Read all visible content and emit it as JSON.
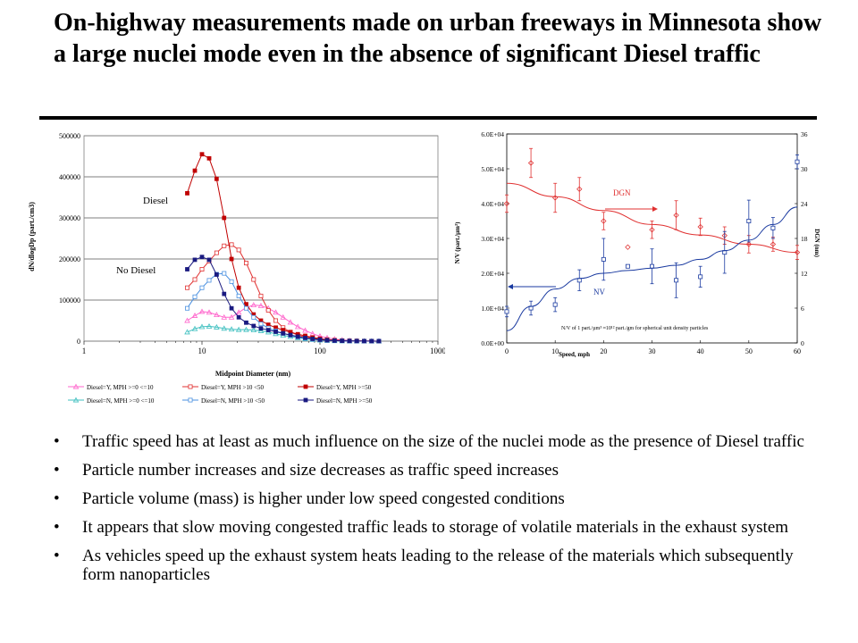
{
  "slide": {
    "title": "On-highway measurements made on urban freeways in Minnesota show a large nuclei mode even in the absence of significant Diesel traffic",
    "bullets": [
      "Traffic speed has at least as much influence on the size of the nuclei mode as the presence of Diesel traffic",
      "Particle number increases and size decreases as traffic speed increases",
      "Particle volume (mass) is higher under low speed congested conditions",
      "It appears that slow moving congested traffic leads to storage of volatile materials in the exhaust system",
      "As vehicles speed up the exhaust system heats leading to the release of the materials which subsequently form nanoparticles"
    ],
    "bullet_glyph": "•"
  },
  "chart_data": [
    {
      "type": "line",
      "xlabel": "Midpoint Diameter (nm)",
      "ylabel": "dN/dlogDp (part./cm3)",
      "xscale": "log",
      "xlim": [
        1,
        1000
      ],
      "ylim": [
        0,
        500000
      ],
      "x_ticks": [
        1,
        10,
        100,
        1000
      ],
      "x_tick_labels": [
        "1",
        "10",
        "100",
        "1000"
      ],
      "y_ticks": [
        0,
        100000,
        200000,
        300000,
        400000,
        500000
      ],
      "y_tick_labels": [
        "0",
        "100000",
        "200000",
        "300000",
        "400000",
        "500000"
      ],
      "grid": "horizontal",
      "legend_position": "bottom",
      "annotations": [
        "Diesel",
        "No Diesel"
      ],
      "x": [
        7.5,
        8.7,
        10,
        11.5,
        13.3,
        15.4,
        17.8,
        20.5,
        23.7,
        27.4,
        31.6,
        36.5,
        42.2,
        48.7,
        56.2,
        64.9,
        75,
        86.6,
        100,
        115,
        133,
        154,
        178,
        205,
        237,
        274,
        316
      ],
      "series": [
        {
          "name": "Diesel=Y, MPH >=0 <=10",
          "color": "#ff66cc",
          "marker": "triangle",
          "values": [
            50000,
            62000,
            72000,
            70000,
            64000,
            58000,
            58000,
            70000,
            82000,
            88000,
            86000,
            80000,
            70000,
            58000,
            46000,
            35000,
            26000,
            18000,
            12000,
            8000,
            5000,
            3000,
            1800,
            1000,
            500,
            250,
            100
          ]
        },
        {
          "name": "Diesel=Y, MPH >10 <50",
          "color": "#e03030",
          "marker": "square-open",
          "values": [
            130000,
            150000,
            175000,
            195000,
            215000,
            232000,
            235000,
            222000,
            190000,
            150000,
            110000,
            75000,
            50000,
            33000,
            22000,
            15000,
            10000,
            7000,
            4500,
            3000,
            2000,
            1200,
            700,
            400,
            200,
            100,
            50
          ]
        },
        {
          "name": "Diesel=Y, MPH >=50",
          "color": "#c00000",
          "marker": "square",
          "values": [
            360000,
            415000,
            455000,
            445000,
            395000,
            300000,
            200000,
            130000,
            90000,
            65000,
            50000,
            40000,
            33000,
            27000,
            22000,
            17000,
            13000,
            9000,
            6000,
            4000,
            2500,
            1500,
            900,
            500,
            250,
            120,
            60
          ]
        },
        {
          "name": "Diesel=N, MPH >=0 <=10",
          "color": "#40c0c0",
          "marker": "triangle",
          "values": [
            22000,
            30000,
            35000,
            36000,
            34000,
            31000,
            29000,
            28000,
            28000,
            27000,
            25000,
            22000,
            18000,
            14000,
            11000,
            8000,
            5500,
            3800,
            2500,
            1500,
            900,
            500,
            250,
            120,
            60,
            30,
            10
          ]
        },
        {
          "name": "Diesel=N, MPH >10 <50",
          "color": "#4a90e0",
          "marker": "square-open",
          "values": [
            80000,
            108000,
            130000,
            148000,
            163000,
            165000,
            145000,
            110000,
            80000,
            58000,
            42000,
            32000,
            25000,
            19000,
            14000,
            10000,
            7000,
            4500,
            3000,
            1800,
            1000,
            600,
            300,
            150,
            80,
            40,
            20
          ]
        },
        {
          "name": "Diesel=N, MPH >=50",
          "color": "#1a1a80",
          "marker": "square",
          "values": [
            175000,
            198000,
            205000,
            198000,
            162000,
            115000,
            80000,
            58000,
            45000,
            37000,
            31000,
            27000,
            23000,
            19000,
            15000,
            11000,
            8000,
            5500,
            3500,
            2200,
            1300,
            800,
            450,
            250,
            120,
            60,
            30
          ]
        }
      ]
    },
    {
      "type": "scatter",
      "xlabel": "Speed, mph",
      "ylabel": "N/V (part./µm³)",
      "y2label": "DGN (nm)",
      "xlim": [
        0,
        60
      ],
      "ylim": [
        0,
        60000
      ],
      "y2lim": [
        0,
        36
      ],
      "x_ticks": [
        0,
        10,
        20,
        30,
        40,
        50,
        60
      ],
      "x_tick_labels": [
        "0",
        "10",
        "20",
        "30",
        "40",
        "50",
        "60"
      ],
      "y_ticks": [
        0,
        10000,
        20000,
        30000,
        40000,
        50000,
        60000
      ],
      "y_tick_labels": [
        "0.0E+00",
        "1.0E+04",
        "2.0E+04",
        "3.0E+04",
        "4.0E+04",
        "5.0E+04",
        "6.0E+04"
      ],
      "y2_ticks": [
        0,
        6,
        12,
        18,
        24,
        30,
        36
      ],
      "y2_tick_labels": [
        "0",
        "6",
        "12",
        "18",
        "24",
        "30",
        "36"
      ],
      "grid": "off",
      "annotations": [
        "DGN",
        "NV",
        "N/V of 1 part./µm³ ≈10¹² part./gm for spherical unit density particles"
      ],
      "series": [
        {
          "name": "DGN",
          "axis": "right",
          "color": "#e03030",
          "marker": "diamond",
          "x": [
            0,
            5,
            10,
            15,
            20,
            25,
            30,
            35,
            40,
            45,
            50,
            55,
            60
          ],
          "y": [
            24,
            31,
            25,
            26.5,
            21,
            16.5,
            19.5,
            22,
            20,
            18.5,
            17,
            17,
            15.6
          ],
          "err": [
            1.5,
            2.5,
            2.5,
            2,
            1.5,
            0,
            1.5,
            2.5,
            1.5,
            1.5,
            1.5,
            1.2,
            1.2
          ]
        },
        {
          "name": "NV",
          "axis": "left",
          "color": "#1a3aa0",
          "marker": "square-open",
          "x": [
            0,
            5,
            10,
            15,
            20,
            25,
            30,
            35,
            40,
            45,
            50,
            55,
            60
          ],
          "y": [
            9000,
            10000,
            11000,
            18000,
            24000,
            22000,
            22000,
            18000,
            19000,
            26000,
            35000,
            33000,
            52000
          ],
          "err": [
            1500,
            2000,
            2000,
            3000,
            6000,
            0,
            5000,
            5000,
            3000,
            6000,
            6000,
            3000,
            2000
          ]
        },
        {
          "name": "DGN trend",
          "axis": "right",
          "color": "#e03030",
          "marker": "none",
          "x": [
            0,
            10,
            20,
            30,
            40,
            50,
            60
          ],
          "y": [
            27.5,
            25.2,
            22.8,
            20.4,
            18.6,
            17.0,
            15.6
          ]
        },
        {
          "name": "NV trend",
          "axis": "left",
          "color": "#1a3aa0",
          "marker": "none",
          "x": [
            0,
            5,
            10,
            15,
            20,
            25,
            30,
            35,
            40,
            45,
            50,
            55,
            60
          ],
          "y": [
            3500,
            10500,
            15500,
            18500,
            20000,
            20800,
            21500,
            22300,
            24000,
            26500,
            29500,
            34000,
            39000
          ]
        }
      ]
    }
  ]
}
